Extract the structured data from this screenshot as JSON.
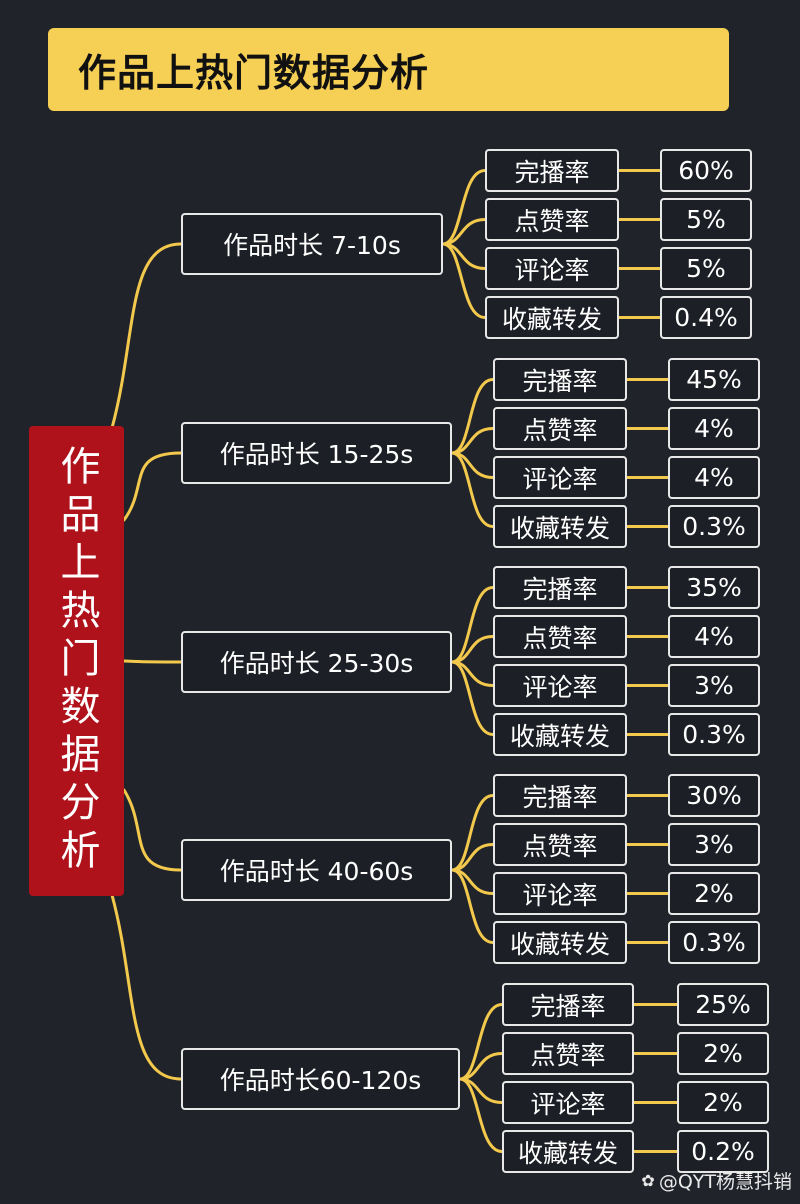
{
  "title": "作品上热门数据分析",
  "root_label": "作品上热门数据分析",
  "line_color": "#f2c94c",
  "groups": [
    {
      "label": "作品时长  7-10s",
      "metrics": [
        {
          "name": "完播率",
          "value": "60%"
        },
        {
          "name": "点赞率",
          "value": "5%"
        },
        {
          "name": "评论率",
          "value": "5%"
        },
        {
          "name": "收藏转发",
          "value": "0.4%"
        }
      ]
    },
    {
      "label": "作品时长 15-25s",
      "metrics": [
        {
          "name": "完播率",
          "value": "45%"
        },
        {
          "name": "点赞率",
          "value": "4%"
        },
        {
          "name": "评论率",
          "value": "4%"
        },
        {
          "name": "收藏转发",
          "value": "0.3%"
        }
      ]
    },
    {
      "label": "作品时长 25-30s",
      "metrics": [
        {
          "name": "完播率",
          "value": "35%"
        },
        {
          "name": "点赞率",
          "value": "4%"
        },
        {
          "name": "评论率",
          "value": "3%"
        },
        {
          "name": "收藏转发",
          "value": "0.3%"
        }
      ]
    },
    {
      "label": "作品时长 40-60s",
      "metrics": [
        {
          "name": "完播率",
          "value": "30%"
        },
        {
          "name": "点赞率",
          "value": "3%"
        },
        {
          "name": "评论率",
          "value": "2%"
        },
        {
          "name": "收藏转发",
          "value": "0.3%"
        }
      ]
    },
    {
      "label": "作品时长60-120s",
      "metrics": [
        {
          "name": "完播率",
          "value": "25%"
        },
        {
          "name": "点赞率",
          "value": "2%"
        },
        {
          "name": "评论率",
          "value": "2%"
        },
        {
          "name": "收藏转发",
          "value": "0.2%"
        }
      ]
    }
  ],
  "watermark": "@QYT杨慧抖销"
}
